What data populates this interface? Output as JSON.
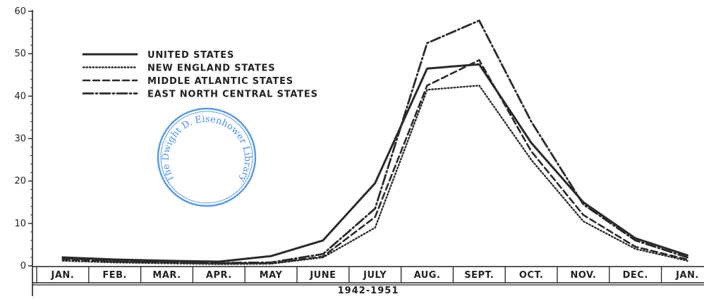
{
  "chart_data": {
    "type": "line",
    "title": "",
    "xlabel": "1942-1951",
    "ylabel": "",
    "ylim": [
      0,
      60
    ],
    "yticks": [
      "0",
      "10",
      "20",
      "30",
      "40",
      "50",
      "60"
    ],
    "categories": [
      "JAN.",
      "FEB.",
      "MAR.",
      "APR.",
      "MAY",
      "JUNE",
      "JULY",
      "AUG.",
      "SEPT.",
      "OCT.",
      "NOV.",
      "DEC.",
      "JAN."
    ],
    "series": [
      {
        "name": "UNITED STATES",
        "style": "solid",
        "values": [
          2.0,
          1.5,
          1.2,
          1.0,
          2.3,
          6.0,
          19.5,
          46.5,
          47.5,
          29.0,
          15.0,
          6.5,
          2.5
        ]
      },
      {
        "name": "NEW ENGLAND STATES",
        "style": "dotted",
        "values": [
          1.2,
          0.8,
          0.6,
          0.4,
          0.5,
          2.0,
          9.0,
          41.5,
          42.5,
          25.0,
          10.5,
          4.0,
          1.2
        ]
      },
      {
        "name": "MIDDLE ATLANTIC STATES",
        "style": "dashed",
        "values": [
          1.5,
          1.0,
          0.8,
          0.6,
          0.6,
          2.2,
          11.5,
          42.5,
          48.5,
          27.0,
          12.0,
          4.5,
          1.5
        ]
      },
      {
        "name": "EAST NORTH CENTRAL STATES",
        "style": "dashdot",
        "values": [
          1.8,
          1.2,
          0.9,
          0.7,
          0.8,
          2.8,
          13.5,
          52.5,
          57.8,
          34.0,
          14.5,
          6.0,
          2.0
        ]
      }
    ],
    "legend": "upper-left",
    "grid": false,
    "stamp_text": "The Dwight D. Eisenhower Library"
  }
}
